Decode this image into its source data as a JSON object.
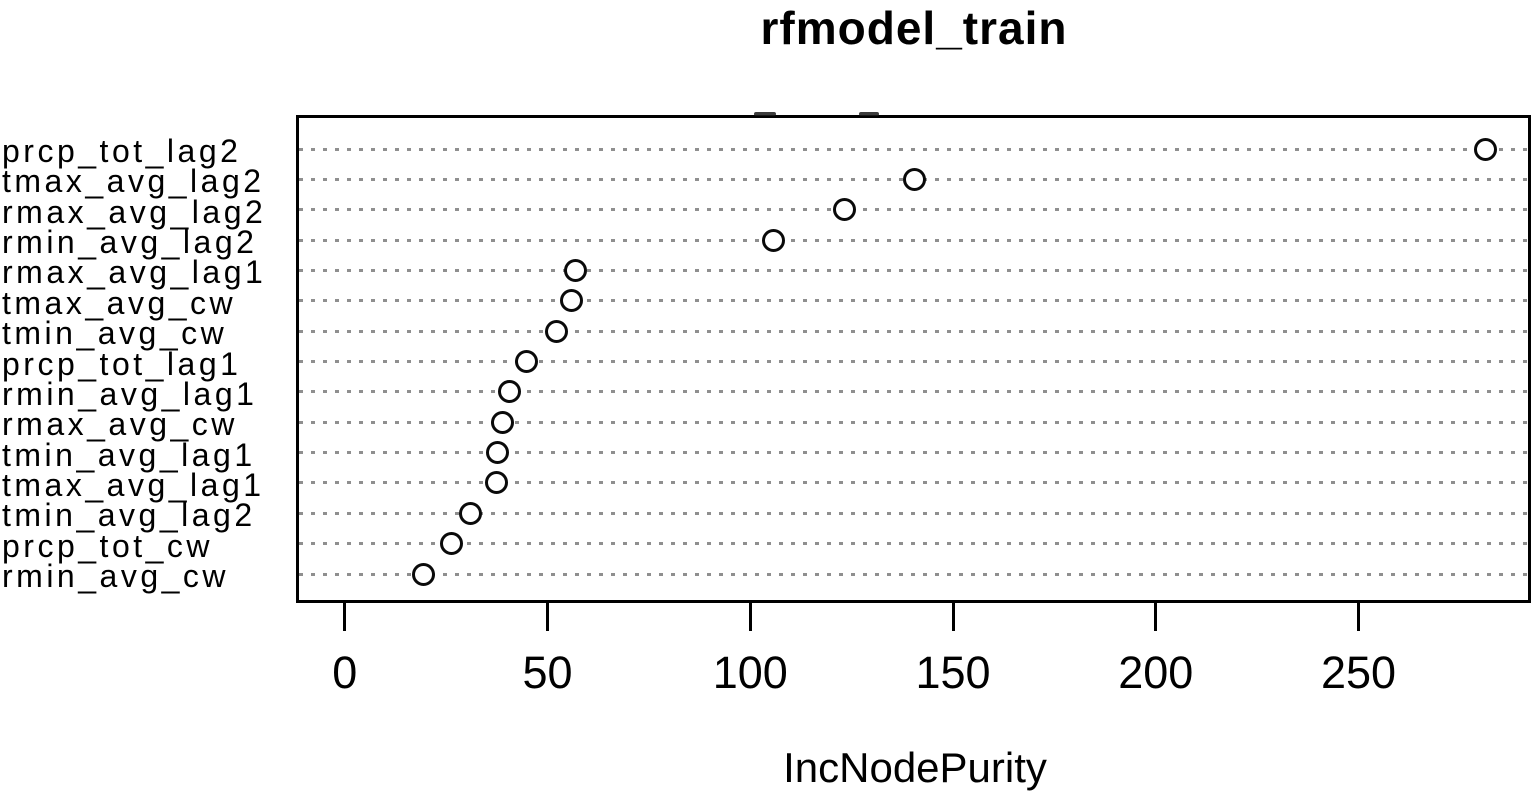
{
  "title": "rfmodel_train",
  "xlabel": "IncNodePurity",
  "chart_data": {
    "type": "scatter",
    "title": "rfmodel_train",
    "xlabel": "IncNodePurity",
    "ylabel": "",
    "orientation": "dotchart-horizontal",
    "marker": "open-circle",
    "grid": "horizontal-dotted",
    "legend_position": "none",
    "xlim": [
      -11.3,
      291.8
    ],
    "x_ticks": [
      0,
      50,
      100,
      150,
      200,
      250
    ],
    "categories": [
      "prcp_tot_lag2",
      "tmax_avg_lag2",
      "rmax_avg_lag2",
      "rmin_avg_lag2",
      "rmax_avg_lag1",
      "tmax_avg_cw",
      "tmin_avg_cw",
      "prcp_tot_lag1",
      "rmin_avg_lag1",
      "rmax_avg_cw",
      "tmin_avg_lag1",
      "tmax_avg_lag1",
      "tmin_avg_lag2",
      "prcp_tot_cw",
      "rmin_avg_cw"
    ],
    "values": [
      281.4,
      140.5,
      123.3,
      105.8,
      57.0,
      56.0,
      52.1,
      44.7,
      40.7,
      39.0,
      37.6,
      37.4,
      30.9,
      26.4,
      19.5
    ]
  },
  "colors": {
    "background": "#ffffff",
    "text": "#000000",
    "frame": "#000000",
    "grid_dots": "#8f8f8f",
    "marker_stroke": "#0a0a0a"
  }
}
